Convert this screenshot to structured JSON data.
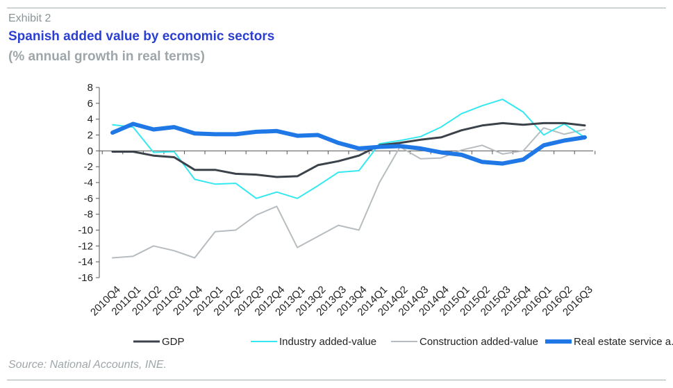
{
  "header": {
    "exhibit": "Exhibit 2",
    "title": "Spanish added value by economic sectors",
    "subtitle": "(% annual growth in real terms)"
  },
  "footer": {
    "source": "Source: National Accounts, INE."
  },
  "chart_data": {
    "type": "line",
    "title": "Spanish added value by economic sectors",
    "subtitle": "(% annual growth in real terms)",
    "xlabel": "",
    "ylabel": "",
    "ylim": [
      -16,
      8
    ],
    "yticks": [
      8,
      6,
      4,
      2,
      0,
      -2,
      -4,
      -6,
      -8,
      -10,
      -12,
      -14,
      -16
    ],
    "categories": [
      "2010Q4",
      "2011Q1",
      "2011Q2",
      "2011Q3",
      "2011Q4",
      "2012Q1",
      "2012Q2",
      "2012Q3",
      "2012Q4",
      "2013Q1",
      "2013Q2",
      "2013Q3",
      "2013Q4",
      "2014Q1",
      "2014Q2",
      "2014Q3",
      "2014Q4",
      "2015Q1",
      "2015Q2",
      "2015Q3",
      "2015Q4",
      "2016Q1",
      "2016Q2",
      "2016Q3"
    ],
    "grid": false,
    "legend_position": "bottom",
    "series": [
      {
        "name": "GDP",
        "color": "#3b4249",
        "width": 3,
        "values": [
          -0.1,
          -0.1,
          -0.6,
          -0.8,
          -2.4,
          -2.4,
          -2.9,
          -3.0,
          -3.3,
          -3.2,
          -1.8,
          -1.3,
          -0.6,
          0.7,
          1.0,
          1.4,
          1.7,
          2.6,
          3.2,
          3.5,
          3.3,
          3.5,
          3.5,
          3.2
        ]
      },
      {
        "name": "Industry added-value",
        "color": "#33e8f0",
        "width": 2,
        "values": [
          3.3,
          3.0,
          -0.2,
          -0.1,
          -3.6,
          -4.2,
          -4.1,
          -6.0,
          -5.2,
          -6.0,
          -4.4,
          -2.7,
          -2.5,
          0.9,
          1.3,
          1.8,
          3.0,
          4.7,
          5.7,
          6.5,
          4.9,
          2.0,
          3.4,
          1.7
        ]
      },
      {
        "name": "Construction added-value",
        "color": "#b6bcbf",
        "width": 2,
        "values": [
          -13.5,
          -13.3,
          -12.0,
          -12.6,
          -13.5,
          -10.2,
          -10.0,
          -8.1,
          -7.0,
          -12.2,
          -10.8,
          -9.4,
          -10.0,
          -4.0,
          0.5,
          -1.0,
          -0.9,
          0.1,
          0.7,
          -0.4,
          0.0,
          2.9,
          2.1,
          2.7
        ]
      },
      {
        "name": "Real estate service a.v.",
        "color": "#1f78e6",
        "width": 6,
        "values": [
          2.3,
          3.4,
          2.7,
          3.0,
          2.2,
          2.1,
          2.1,
          2.4,
          2.5,
          1.9,
          2.0,
          1.0,
          0.3,
          0.5,
          0.6,
          0.3,
          -0.2,
          -0.5,
          -1.4,
          -1.6,
          -1.1,
          0.7,
          1.3,
          1.7
        ]
      }
    ]
  }
}
